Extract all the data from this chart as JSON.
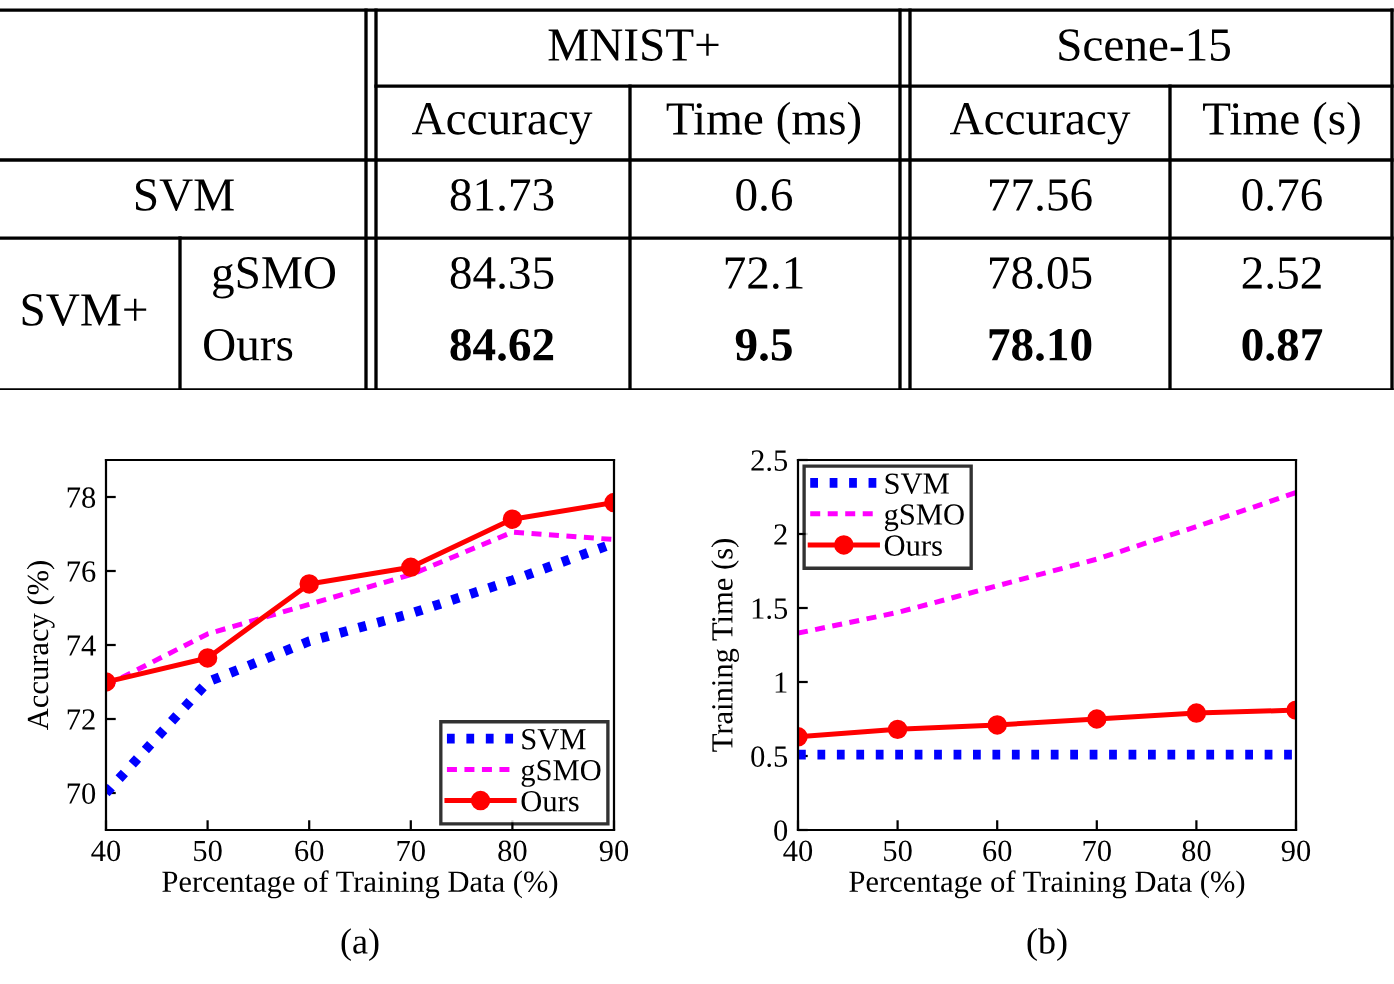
{
  "chart_data": [
    {
      "type": "other",
      "annotations": [
        "MNIST+",
        "Scene-15",
        "Accuracy",
        "Time (ms)",
        "Accuracy",
        "Time (s)",
        "SVM",
        "81.73",
        "0.6",
        "77.56",
        "0.76",
        "SVM+",
        "gSMO",
        "84.35",
        "72.1",
        "78.05",
        "2.52",
        "Ours",
        "84.62",
        "9.5",
        "78.10",
        "0.87"
      ]
    },
    {
      "type": "line",
      "xlabel": "Percentage of Training Data (%)",
      "ylabel": "Accuracy (%)",
      "x": [
        40,
        50,
        60,
        70,
        80,
        90
      ],
      "xlim": [
        40,
        90
      ],
      "xticks": [
        40,
        50,
        60,
        70,
        80,
        90
      ],
      "ylim": [
        69,
        79
      ],
      "yticks": [
        70,
        72,
        74,
        76,
        78
      ],
      "grid": false,
      "legend": "bottom right",
      "annotations": [
        "(a)"
      ],
      "series": [
        {
          "name": "SVM",
          "color": "#0000ff",
          "line_style": "dotted",
          "marker": "none",
          "values": [
            70.0,
            73.0,
            74.1,
            74.85,
            75.75,
            76.75
          ]
        },
        {
          "name": "gSMO",
          "color": "#ff00ff",
          "line_style": "dashed",
          "marker": "none",
          "values": [
            72.9,
            74.3,
            75.1,
            75.9,
            77.05,
            76.85
          ]
        },
        {
          "name": "Ours",
          "color": "#ff0000",
          "line_style": "solid",
          "marker": "circle",
          "values": [
            73.0,
            73.65,
            75.65,
            76.1,
            77.4,
            77.85
          ]
        }
      ]
    },
    {
      "type": "line",
      "xlabel": "Percentage of Training Data (%)",
      "ylabel": "Training Time (s)",
      "x": [
        40,
        50,
        60,
        70,
        80,
        90
      ],
      "xlim": [
        40,
        90
      ],
      "xticks": [
        40,
        50,
        60,
        70,
        80,
        90
      ],
      "ylim": [
        0,
        2.5
      ],
      "yticks": [
        0,
        0.5,
        1,
        1.5,
        2,
        2.5
      ],
      "grid": false,
      "legend": "top left",
      "annotations": [
        "(b)"
      ],
      "series": [
        {
          "name": "SVM",
          "color": "#0000ff",
          "line_style": "dotted",
          "marker": "none",
          "values": [
            0.51,
            0.51,
            0.51,
            0.51,
            0.51,
            0.51
          ]
        },
        {
          "name": "gSMO",
          "color": "#ff00ff",
          "line_style": "dashed",
          "marker": "none",
          "values": [
            1.33,
            1.47,
            1.65,
            1.83,
            2.05,
            2.28
          ]
        },
        {
          "name": "Ours",
          "color": "#ff0000",
          "line_style": "solid",
          "marker": "circle",
          "values": [
            0.63,
            0.68,
            0.71,
            0.75,
            0.79,
            0.81
          ]
        }
      ]
    }
  ]
}
